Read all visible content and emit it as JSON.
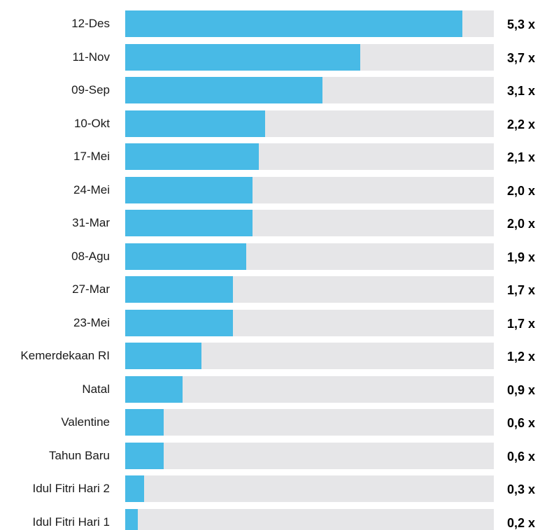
{
  "chart_data": {
    "type": "bar",
    "orientation": "horizontal",
    "categories": [
      "12-Des",
      "11-Nov",
      "09-Sep",
      "10-Okt",
      "17-Mei",
      "24-Mei",
      "31-Mar",
      "08-Agu",
      "27-Mar",
      "23-Mei",
      "Kemerdekaan RI",
      "Natal",
      "Valentine",
      "Tahun Baru",
      "Idul Fitri Hari 2",
      "Idul Fitri Hari 1"
    ],
    "values": [
      5.3,
      3.7,
      3.1,
      2.2,
      2.1,
      2.0,
      2.0,
      1.9,
      1.7,
      1.7,
      1.2,
      0.9,
      0.6,
      0.6,
      0.3,
      0.2
    ],
    "value_labels": [
      "5,3 x",
      "3,7 x",
      "3,1 x",
      "2,2 x",
      "2,1 x",
      "2,0 x",
      "2,0 x",
      "1,9 x",
      "1,7 x",
      "1,7 x",
      "1,2 x",
      "0,9 x",
      "0,6 x",
      "0,6 x",
      "0,3 x",
      "0,2 x"
    ],
    "xlim": [
      0,
      5.8
    ],
    "grid": false,
    "legend": "none",
    "colors": {
      "bar": "#48bae6",
      "track": "#e6e6e8"
    }
  }
}
